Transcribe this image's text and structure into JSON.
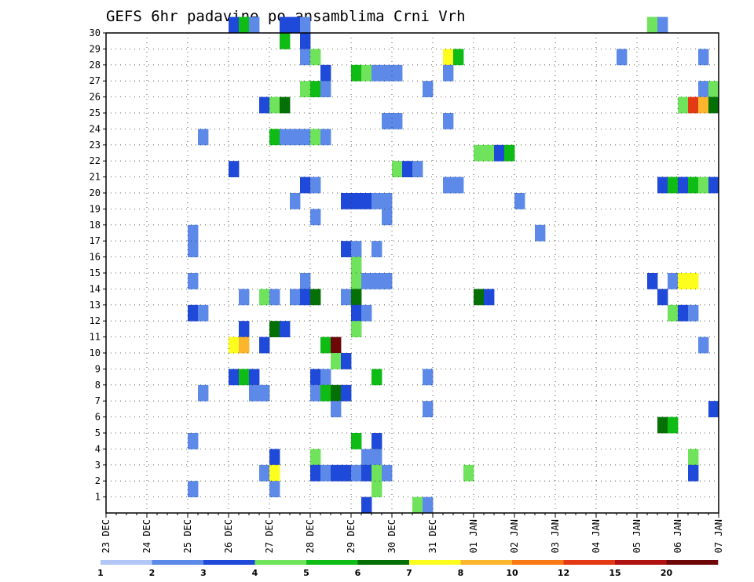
{
  "chart_data": {
    "type": "heatmap",
    "title": "GEFS 6hr padavine po ansamblima Crni Vrh",
    "xlabel": "",
    "ylabel": "",
    "x_ticks": [
      "23 DEC",
      "24 DEC",
      "25 DEC",
      "26 DEC",
      "27 DEC",
      "28 DEC",
      "29 DEC",
      "30 DEC",
      "31 DEC",
      "01 JAN",
      "02 JAN",
      "03 JAN",
      "04 JAN",
      "05 JAN",
      "06 JAN",
      "07 JAN"
    ],
    "y_ticks": [
      1,
      2,
      3,
      4,
      5,
      6,
      7,
      8,
      9,
      10,
      11,
      12,
      13,
      14,
      15,
      16,
      17,
      18,
      19,
      20,
      21,
      22,
      23,
      24,
      25,
      26,
      27,
      28,
      29,
      30
    ],
    "x_range_days": [
      0,
      15
    ],
    "y_range": [
      0,
      30
    ],
    "steps_per_day": 4,
    "grid": true,
    "colorbar": {
      "placement": "bottom",
      "levels": [
        1,
        2,
        3,
        4,
        5,
        6,
        7,
        8,
        10,
        12,
        15,
        20
      ],
      "colors": [
        "#b3c7f7",
        "#5d8ae8",
        "#1f49d8",
        "#6ee35b",
        "#0fbb15",
        "#057005",
        "#fdfd1e",
        "#fcb62d",
        "#fa7a16",
        "#e33a15",
        "#b01212",
        "#6e0808"
      ]
    },
    "cells": [
      [
        30,
        12,
        2
      ],
      [
        30,
        13,
        4
      ],
      [
        30,
        14,
        1
      ],
      [
        30,
        17,
        2
      ],
      [
        30,
        18,
        2
      ],
      [
        30,
        19,
        1
      ],
      [
        30,
        53,
        3
      ],
      [
        30,
        54,
        1
      ],
      [
        29,
        17,
        4
      ],
      [
        29,
        19,
        2
      ],
      [
        28,
        19,
        1
      ],
      [
        28,
        20,
        3
      ],
      [
        28,
        33,
        6
      ],
      [
        28,
        34,
        4
      ],
      [
        28,
        50,
        1
      ],
      [
        28,
        58,
        1
      ],
      [
        27,
        21,
        2
      ],
      [
        27,
        24,
        4
      ],
      [
        27,
        25,
        3
      ],
      [
        27,
        26,
        1
      ],
      [
        27,
        27,
        1
      ],
      [
        27,
        28,
        1
      ],
      [
        27,
        33,
        1
      ],
      [
        26,
        19,
        3
      ],
      [
        26,
        20,
        4
      ],
      [
        26,
        21,
        1
      ],
      [
        26,
        31,
        1
      ],
      [
        26,
        58,
        1
      ],
      [
        26,
        59,
        3
      ],
      [
        25,
        15,
        2
      ],
      [
        25,
        16,
        3
      ],
      [
        25,
        17,
        5
      ],
      [
        25,
        56,
        3
      ],
      [
        25,
        57,
        9
      ],
      [
        25,
        58,
        7
      ],
      [
        25,
        59,
        5
      ],
      [
        24,
        27,
        1
      ],
      [
        24,
        28,
        1
      ],
      [
        24,
        33,
        1
      ],
      [
        23,
        9,
        1
      ],
      [
        23,
        16,
        4
      ],
      [
        23,
        17,
        1
      ],
      [
        23,
        18,
        1
      ],
      [
        23,
        19,
        1
      ],
      [
        23,
        20,
        3
      ],
      [
        23,
        21,
        1
      ],
      [
        22,
        36,
        3
      ],
      [
        22,
        37,
        3
      ],
      [
        22,
        38,
        2
      ],
      [
        22,
        39,
        4
      ],
      [
        21,
        12,
        2
      ],
      [
        21,
        28,
        3
      ],
      [
        21,
        29,
        2
      ],
      [
        21,
        30,
        1
      ],
      [
        20,
        19,
        2
      ],
      [
        20,
        20,
        1
      ],
      [
        20,
        33,
        1
      ],
      [
        20,
        34,
        1
      ],
      [
        20,
        54,
        2
      ],
      [
        20,
        55,
        4
      ],
      [
        20,
        56,
        2
      ],
      [
        20,
        57,
        4
      ],
      [
        20,
        58,
        3
      ],
      [
        20,
        59,
        2
      ],
      [
        19,
        18,
        1
      ],
      [
        19,
        23,
        2
      ],
      [
        19,
        24,
        2
      ],
      [
        19,
        25,
        2
      ],
      [
        19,
        26,
        1
      ],
      [
        19,
        27,
        1
      ],
      [
        19,
        40,
        1
      ],
      [
        18,
        20,
        1
      ],
      [
        18,
        27,
        1
      ],
      [
        17,
        8,
        1
      ],
      [
        17,
        42,
        1
      ],
      [
        16,
        8,
        1
      ],
      [
        16,
        23,
        2
      ],
      [
        16,
        24,
        1
      ],
      [
        16,
        26,
        1
      ],
      [
        15,
        24,
        3
      ],
      [
        14,
        8,
        1
      ],
      [
        14,
        19,
        1
      ],
      [
        14,
        24,
        3
      ],
      [
        14,
        25,
        1
      ],
      [
        14,
        26,
        1
      ],
      [
        14,
        27,
        1
      ],
      [
        14,
        53,
        2
      ],
      [
        14,
        55,
        1
      ],
      [
        14,
        56,
        6
      ],
      [
        14,
        57,
        6
      ],
      [
        13,
        13,
        1
      ],
      [
        13,
        15,
        3
      ],
      [
        13,
        16,
        1
      ],
      [
        13,
        18,
        1
      ],
      [
        13,
        19,
        2
      ],
      [
        13,
        20,
        5
      ],
      [
        13,
        23,
        1
      ],
      [
        13,
        24,
        5
      ],
      [
        13,
        36,
        5
      ],
      [
        13,
        37,
        2
      ],
      [
        13,
        54,
        2
      ],
      [
        12,
        8,
        2
      ],
      [
        12,
        9,
        1
      ],
      [
        12,
        24,
        2
      ],
      [
        12,
        25,
        1
      ],
      [
        12,
        55,
        3
      ],
      [
        12,
        56,
        2
      ],
      [
        12,
        57,
        1
      ],
      [
        11,
        13,
        2
      ],
      [
        11,
        16,
        5
      ],
      [
        11,
        17,
        2
      ],
      [
        11,
        24,
        3
      ],
      [
        10,
        12,
        6
      ],
      [
        10,
        13,
        7
      ],
      [
        10,
        15,
        2
      ],
      [
        10,
        21,
        4
      ],
      [
        10,
        22,
        11
      ],
      [
        10,
        58,
        1
      ],
      [
        9,
        22,
        3
      ],
      [
        9,
        23,
        2
      ],
      [
        8,
        12,
        2
      ],
      [
        8,
        13,
        4
      ],
      [
        8,
        14,
        2
      ],
      [
        8,
        20,
        2
      ],
      [
        8,
        21,
        1
      ],
      [
        8,
        26,
        4
      ],
      [
        8,
        31,
        1
      ],
      [
        7,
        9,
        1
      ],
      [
        7,
        14,
        1
      ],
      [
        7,
        15,
        1
      ],
      [
        7,
        20,
        1
      ],
      [
        7,
        21,
        4
      ],
      [
        7,
        22,
        5
      ],
      [
        7,
        23,
        2
      ],
      [
        6,
        22,
        1
      ],
      [
        6,
        31,
        1
      ],
      [
        6,
        59,
        2
      ],
      [
        5,
        54,
        5
      ],
      [
        5,
        55,
        4
      ],
      [
        4,
        8,
        1
      ],
      [
        4,
        24,
        4
      ],
      [
        4,
        26,
        2
      ],
      [
        3,
        16,
        2
      ],
      [
        3,
        20,
        3
      ],
      [
        3,
        25,
        1
      ],
      [
        3,
        26,
        1
      ],
      [
        3,
        57,
        3
      ],
      [
        2,
        15,
        1
      ],
      [
        2,
        16,
        6
      ],
      [
        2,
        20,
        2
      ],
      [
        2,
        21,
        1
      ],
      [
        2,
        22,
        2
      ],
      [
        2,
        23,
        2
      ],
      [
        2,
        24,
        1
      ],
      [
        2,
        25,
        2
      ],
      [
        2,
        26,
        3
      ],
      [
        2,
        27,
        1
      ],
      [
        2,
        35,
        3
      ],
      [
        2,
        57,
        2
      ],
      [
        1,
        8,
        1
      ],
      [
        1,
        16,
        1
      ],
      [
        1,
        26,
        3
      ],
      [
        0,
        25,
        2
      ],
      [
        0,
        30,
        3
      ],
      [
        0,
        31,
        1
      ]
    ]
  }
}
